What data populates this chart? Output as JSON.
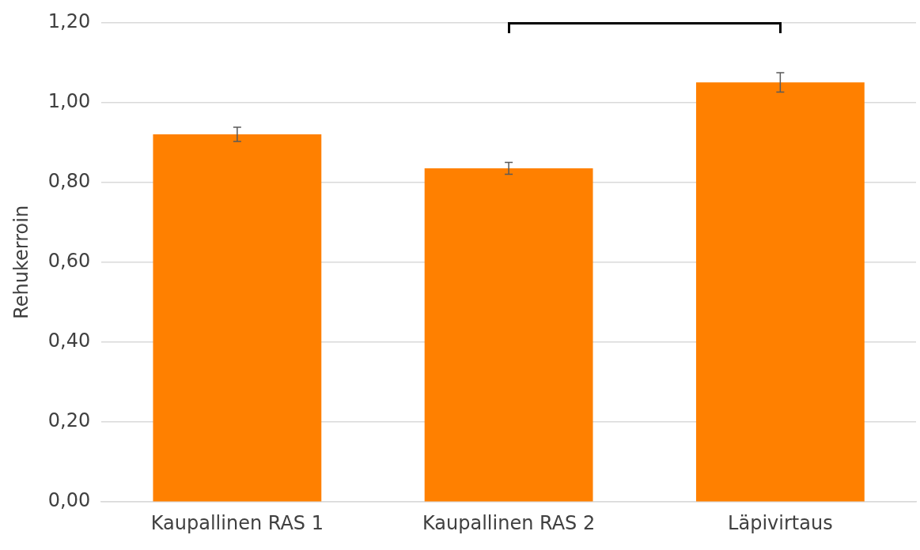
{
  "chart_data": {
    "type": "bar",
    "ylabel": "Rehukerroin",
    "categories": [
      "Kaupallinen RAS 1",
      "Kaupallinen RAS 2",
      "Läpivirtaus"
    ],
    "values": [
      0.92,
      0.835,
      1.05
    ],
    "errors": [
      0.018,
      0.015,
      0.024
    ],
    "color": "#ff8000",
    "ylim": [
      0,
      1.2
    ],
    "yticks": [
      {
        "value": 0,
        "label": "0,00"
      },
      {
        "value": 0.2,
        "label": "0,20"
      },
      {
        "value": 0.4,
        "label": "0,40"
      },
      {
        "value": 0.6,
        "label": "0,60"
      },
      {
        "value": 0.8,
        "label": "0,80"
      },
      {
        "value": 1.0,
        "label": "1,00"
      },
      {
        "value": 1.2,
        "label": "1,20"
      }
    ],
    "grid": "y",
    "legend": false
  }
}
